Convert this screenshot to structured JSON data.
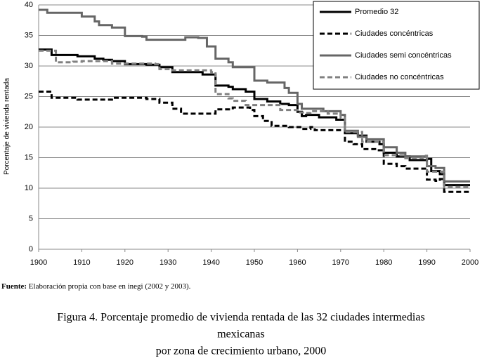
{
  "chart_data": {
    "type": "line",
    "step": "post",
    "y_label": "Porcentaje de vivienda rentada",
    "xlim": [
      1900,
      2000
    ],
    "xticks": [
      1900,
      1910,
      1920,
      1930,
      1940,
      1950,
      1960,
      1970,
      1980,
      1990,
      2000
    ],
    "ylim": [
      0,
      40
    ],
    "yticks": [
      0,
      5,
      10,
      15,
      20,
      25,
      30,
      35,
      40
    ],
    "grid": true,
    "legend": "upper right",
    "series": [
      {
        "name": "Promedio 32",
        "color": "#000000",
        "dash": false,
        "x": [
          1900,
          1902,
          1903,
          1908,
          1909,
          1912,
          1913,
          1915,
          1917,
          1920,
          1925,
          1928,
          1931,
          1935,
          1938,
          1941,
          1944,
          1945,
          1948,
          1950,
          1953,
          1956,
          1958,
          1960,
          1961,
          1962,
          1965,
          1969,
          1971,
          1974,
          1976,
          1979,
          1980,
          1983,
          1986,
          1990,
          1991,
          1993,
          1994,
          2000
        ],
        "values": [
          32.7,
          32.7,
          31.8,
          31.8,
          31.6,
          31.6,
          31.2,
          31,
          30.8,
          30.3,
          30.2,
          29.8,
          29,
          29,
          28.6,
          26.8,
          26.6,
          26.2,
          25.8,
          24.6,
          24.2,
          23.8,
          23.6,
          22.5,
          21.8,
          22,
          21.6,
          21.2,
          19,
          18.6,
          17.6,
          17.2,
          15.8,
          15.2,
          14.6,
          14.8,
          12.8,
          12.3,
          10.5,
          10.5
        ]
      },
      {
        "name": "Ciudades concéntricas",
        "color": "#000000",
        "dash": true,
        "x": [
          1900,
          1902,
          1903,
          1908,
          1909,
          1917,
          1925,
          1928,
          1931,
          1933,
          1941,
          1945,
          1949,
          1950,
          1952,
          1954,
          1958,
          1961,
          1963,
          1964,
          1971,
          1973,
          1975,
          1978,
          1980,
          1983,
          1985,
          1990,
          1992,
          1993,
          1994,
          2000
        ],
        "values": [
          25.8,
          25.8,
          24.8,
          24.8,
          24.5,
          24.8,
          24.6,
          24,
          23,
          22.2,
          22.9,
          23.2,
          22.8,
          21.8,
          21,
          20.2,
          20,
          19.7,
          20,
          19.5,
          17.6,
          17.2,
          16.4,
          16.2,
          14,
          13.6,
          13.2,
          11.4,
          11.2,
          11.5,
          9.4,
          9.4
        ]
      },
      {
        "name": "Ciudades semi concéntricas",
        "color": "#666666",
        "dash": false,
        "x": [
          1900,
          1902,
          1910,
          1913,
          1914,
          1917,
          1920,
          1924,
          1925,
          1934,
          1937,
          1939,
          1941,
          1944,
          1945,
          1950,
          1953,
          1957,
          1958,
          1960,
          1961,
          1966,
          1970,
          1971,
          1974,
          1976,
          1980,
          1983,
          1985,
          1989,
          1990,
          1992,
          1994,
          2000
        ],
        "values": [
          39.2,
          38.7,
          38.1,
          37.3,
          36.7,
          36.3,
          34.9,
          34.8,
          34.3,
          34.7,
          34.6,
          33.2,
          31.2,
          30.6,
          29.8,
          27.6,
          27.3,
          26.4,
          25.6,
          23.8,
          23,
          22.6,
          22,
          19.4,
          18.4,
          18,
          16.7,
          15.8,
          15.2,
          15.2,
          13.6,
          13.3,
          11.1,
          11.1
        ]
      },
      {
        "name": "Ciudades no concéntricas",
        "color": "#808080",
        "dash": true,
        "x": [
          1900,
          1903,
          1904,
          1908,
          1910,
          1915,
          1917,
          1927,
          1928,
          1931,
          1940,
          1941,
          1944,
          1945,
          1948,
          1953,
          1956,
          1960,
          1962,
          1963,
          1967,
          1970,
          1971,
          1975,
          1979,
          1980,
          1985,
          1989,
          1990,
          1993,
          1994,
          2000
        ],
        "values": [
          32.5,
          32.5,
          30.6,
          30.7,
          30.8,
          30.8,
          30.4,
          30.3,
          29.5,
          29.3,
          29,
          25.4,
          24.7,
          24.3,
          23.6,
          23.6,
          22.8,
          22.4,
          22.3,
          22.6,
          22.2,
          21.5,
          19.2,
          17.6,
          17.6,
          15.4,
          14.9,
          15.3,
          12.7,
          12.7,
          10.2,
          10.2
        ]
      }
    ],
    "source_label": "Fuente:",
    "source_text": "Elaboración propia con base en inegi (2002 y 2003).",
    "caption": [
      "Figura 4. Porcentaje promedio de vivienda rentada de las 32 ciudades intermedias",
      "mexicanas",
      "por zona de crecimiento urbano, 2000"
    ]
  }
}
